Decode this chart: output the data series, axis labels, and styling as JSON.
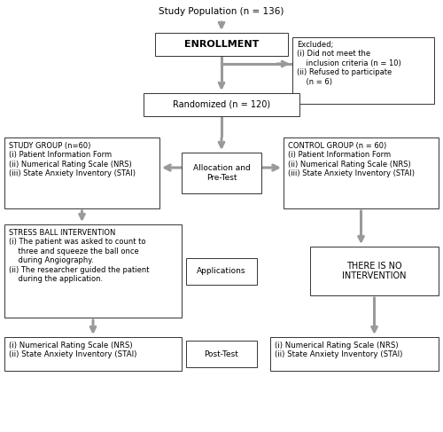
{
  "bg_color": "#ffffff",
  "arrow_color": "#999999",
  "box_border_color": "#333333",
  "text_color": "#000000",
  "title": "Study Population (n = 136)",
  "enrollment_box": "ENROLLMENT",
  "excluded_box": "Excluded;\n(i) Did not meet the\n    inclusion criteria (n = 10)\n(ii) Refused to participate\n    (n = 6)",
  "randomized_box": "Randomized (n = 120)",
  "study_group_box": "STUDY GROUP (n=60)\n(i) Patient Information Form\n(ii) Numerical Rating Scale (NRS)\n(iii) State Anxiety Inventory (STAI)",
  "allocation_box": "Allocation and\nPre-Test",
  "control_group_box": "CONTROL GROUP (n = 60)\n(i) Patient Information Form\n(ii) Numerical Rating Scale (NRS)\n(iii) State Anxiety Inventory (STAI)",
  "stress_ball_box": "STRESS BALL INTERVENTION\n(i) The patient was asked to count to\n    three and squeeze the ball once\n    during Angiography.\n(ii) The researcher guided the patient\n    during the application.",
  "applications_box": "Applications",
  "no_intervention_box": "THERE IS NO\nINTERVENTION",
  "post_test_left_box": "(i) Numerical Rating Scale (NRS)\n(ii) State Anxiety Inventory (STAI)",
  "post_test_box": "Post-Test",
  "post_test_right_box": "(i) Numerical Rating Scale (NRS)\n(ii) State Anxiety Inventory (STAI)"
}
